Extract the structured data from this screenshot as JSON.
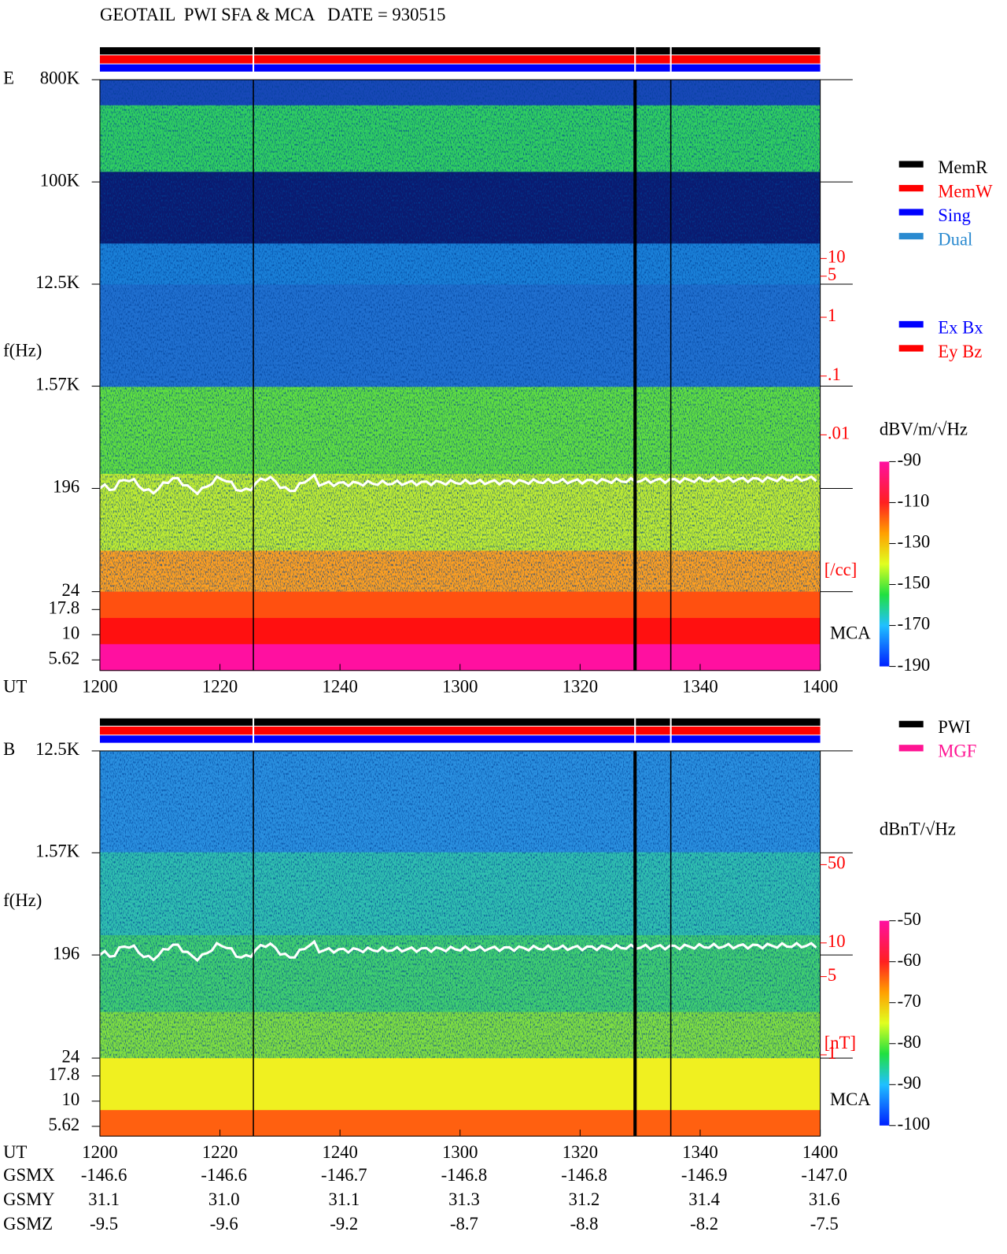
{
  "title": "GEOTAIL  PWI SFA & MCA   DATE = 930515",
  "legends": {
    "mode": [
      {
        "name": "MemR",
        "color": "#000000"
      },
      {
        "name": "MemW",
        "color": "#ff0000"
      },
      {
        "name": "Sing",
        "color": "#0000ff"
      },
      {
        "name": "Dual",
        "color": "#2a8ad0"
      }
    ],
    "component": [
      {
        "name": "Ex Bx",
        "color": "#0000ff"
      },
      {
        "name": "Ey Bz",
        "color": "#ff0000"
      }
    ],
    "source": [
      {
        "name": "PWI",
        "color": "#000000"
      },
      {
        "name": "MGF",
        "color": "#ff1493"
      }
    ]
  },
  "chart_data": [
    {
      "type": "spectrogram",
      "panel_label": "E",
      "y_label": "f(Hz)",
      "x_label": "UT",
      "categories": [
        "1200",
        "1220",
        "1240",
        "1300",
        "1320",
        "1340",
        "1400"
      ],
      "log_y": true,
      "ylim": [
        24,
        800000
      ],
      "yticks": [
        {
          "value": 800000,
          "label": "800K"
        },
        {
          "value": 100000,
          "label": "100K"
        },
        {
          "value": 12500,
          "label": "12.5K"
        },
        {
          "value": 1570,
          "label": "1.57K"
        },
        196,
        24
      ],
      "mca_label": "MCA",
      "mca_ticks": [
        17.8,
        10,
        5.62
      ],
      "colorbar_label": "dBV/m/√Hz",
      "clim": [
        -190,
        -90
      ],
      "cticks": [
        -90,
        -110,
        -130,
        -150,
        -170,
        -190
      ],
      "y2lim": [
        0.01,
        10
      ],
      "y2ticks": [
        10,
        5,
        1,
        {
          "value": 0.1,
          "label": ".1"
        },
        {
          "value": 0.01,
          "label": ".01"
        }
      ],
      "y2_label": "[/cc]",
      "y2_color": "#ff0000"
    },
    {
      "type": "spectrogram",
      "panel_label": "B",
      "y_label": "f(Hz)",
      "x_label": "UT",
      "categories": [
        "1200",
        "1220",
        "1240",
        "1300",
        "1320",
        "1340",
        "1400"
      ],
      "log_y": true,
      "ylim": [
        24,
        12500
      ],
      "yticks": [
        {
          "value": 12500,
          "label": "12.5K"
        },
        {
          "value": 1570,
          "label": "1.57K"
        },
        196,
        24
      ],
      "mca_label": "MCA",
      "mca_ticks": [
        17.8,
        10,
        5.62
      ],
      "colorbar_label": "dBnT/√Hz",
      "clim": [
        -100,
        -50
      ],
      "cticks": [
        -50,
        -60,
        -70,
        -80,
        -90,
        -100
      ],
      "y2lim": [
        1,
        50
      ],
      "y2ticks": [
        50,
        10,
        5,
        1
      ],
      "y2_label": "[nT]",
      "y2_color": "#ff0000"
    }
  ],
  "orbit": {
    "rows": [
      {
        "label": "GSMX",
        "values": [
          "-146.6",
          "-146.6",
          "-146.7",
          "-146.8",
          "-146.8",
          "-146.9",
          "-147.0"
        ]
      },
      {
        "label": "GSMY",
        "values": [
          "31.1",
          "31.0",
          "31.1",
          "31.3",
          "31.2",
          "31.4",
          "31.6"
        ]
      },
      {
        "label": "GSMZ",
        "values": [
          "-9.5",
          "-9.6",
          "-9.2",
          "-8.7",
          "-8.8",
          "-8.2",
          "-7.5"
        ]
      }
    ]
  }
}
